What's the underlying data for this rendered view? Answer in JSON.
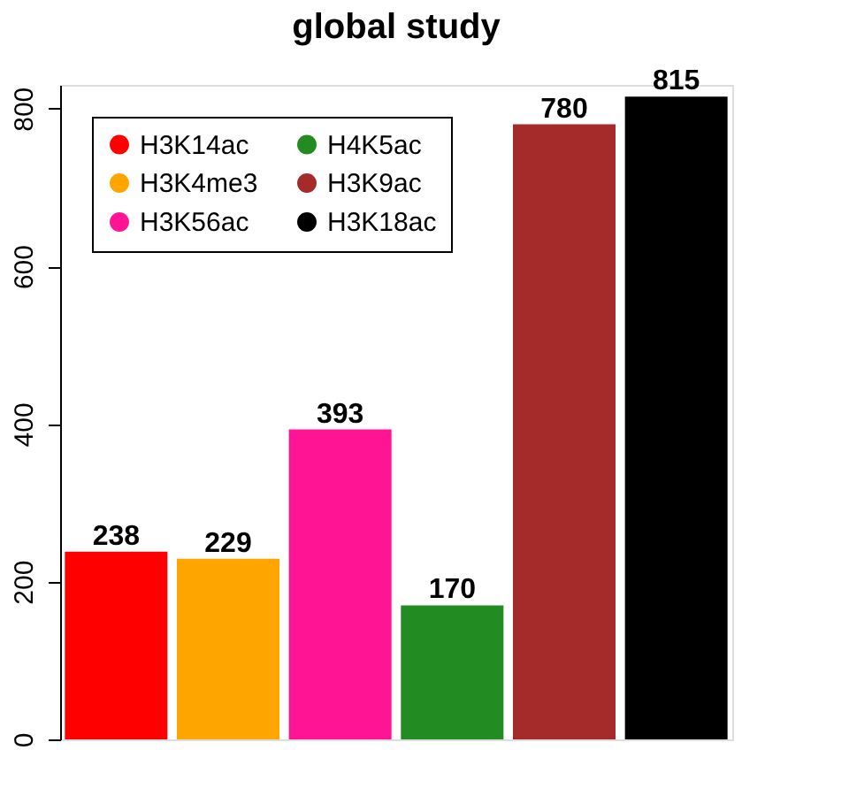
{
  "chart_data": {
    "type": "bar",
    "title": "global study",
    "categories": [
      null,
      null,
      null,
      null,
      null,
      null
    ],
    "series": [
      {
        "name": "H3K14ac",
        "color": "#ff0000",
        "values": [
          238,
          null,
          null,
          null,
          null,
          null
        ]
      },
      {
        "name": "H3K4me3",
        "color": "#ffa500",
        "values": [
          null,
          229,
          null,
          null,
          null,
          null
        ]
      },
      {
        "name": "H3K56ac",
        "color": "#ff1493",
        "values": [
          null,
          null,
          393,
          null,
          null,
          null
        ]
      },
      {
        "name": "H4K5ac",
        "color": "#228b22",
        "values": [
          null,
          null,
          null,
          170,
          null,
          null
        ]
      },
      {
        "name": "H3K9ac",
        "color": "#a52a2a",
        "values": [
          null,
          null,
          null,
          null,
          780,
          null
        ]
      },
      {
        "name": "H3K18ac",
        "color": "#000000",
        "values": [
          null,
          null,
          null,
          null,
          null,
          815
        ]
      }
    ],
    "ylim": [
      0,
      830
    ],
    "yticks": [
      0,
      200,
      400,
      600,
      800
    ],
    "stacked": true,
    "data_labels": true,
    "legend": "top left",
    "grid": false,
    "tick_labels": "y"
  }
}
